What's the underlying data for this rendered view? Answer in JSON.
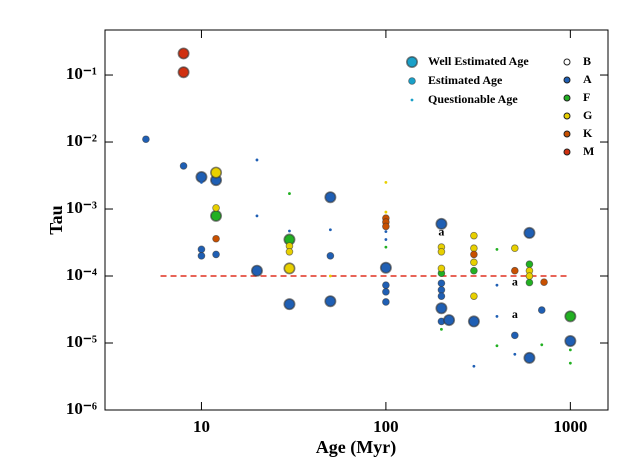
{
  "chart_data": {
    "type": "scatter",
    "xlabel": "Age (Myr)",
    "ylabel": "Tau",
    "log_x": true,
    "log_y": true,
    "xlim": [
      3,
      1600
    ],
    "ylim": [
      1e-06,
      0.47
    ],
    "xticks": [
      10,
      100,
      1000
    ],
    "yticks": [
      {
        "value": 1e-06,
        "label": "10⁻⁶"
      },
      {
        "value": 1e-05,
        "label": "10⁻⁵"
      },
      {
        "value": 0.0001,
        "label": "10⁻⁴"
      },
      {
        "value": 0.001,
        "label": "10⁻³"
      },
      {
        "value": 0.01,
        "label": "10⁻²"
      },
      {
        "value": 0.1,
        "label": "10⁻¹"
      }
    ],
    "size_legend": {
      "color": "#1aa0c8",
      "items": [
        "Well Estimated Age",
        "Estimated Age",
        "Questionable Age"
      ]
    },
    "reference_line": {
      "y": 0.0001,
      "x": [
        6,
        1000
      ],
      "color": "#e03020"
    },
    "annotations": [
      {
        "text": "a",
        "x": 200,
        "y": 0.00044
      },
      {
        "text": "a",
        "x": 500,
        "y": 7.9e-05
      },
      {
        "text": "a",
        "x": 500,
        "y": 2.6e-05
      }
    ],
    "series": [
      {
        "name": "B",
        "color": "#ffffff",
        "x": [
          400
        ],
        "values": [
          0.00011
        ],
        "quality": [
          2
        ]
      },
      {
        "name": "A",
        "color": "#1f5fb4",
        "x": [
          5,
          8,
          10,
          10,
          12,
          10,
          10,
          12,
          20,
          20,
          20,
          30,
          30,
          50,
          50,
          50,
          50,
          100,
          100,
          100,
          100,
          100,
          100,
          200,
          200,
          200,
          200,
          200,
          200,
          220,
          300,
          300,
          400,
          400,
          500,
          500,
          600,
          600,
          700,
          1000
        ],
        "values": [
          0.011,
          0.0044,
          0.003,
          0.0025,
          0.0027,
          0.00025,
          0.0002,
          0.00021,
          0.0054,
          0.00079,
          0.00012,
          0.00047,
          3.8e-05,
          0.0015,
          0.00049,
          0.0002,
          4.2e-05,
          0.00046,
          0.00035,
          0.000133,
          7.3e-05,
          5.8e-05,
          4.1e-05,
          0.0006,
          7.8e-05,
          6.2e-05,
          5e-05,
          3.3e-05,
          2.1e-05,
          2.2e-05,
          2.1e-05,
          4.5e-06,
          7.3e-05,
          2.5e-05,
          1.3e-05,
          6.8e-06,
          0.00044,
          6e-06,
          3.1e-05,
          1.07e-05
        ],
        "quality": [
          1,
          1,
          0,
          2,
          0,
          1,
          1,
          1,
          2,
          2,
          0,
          2,
          0,
          0,
          2,
          1,
          0,
          2,
          2,
          0,
          1,
          1,
          1,
          0,
          1,
          1,
          1,
          0,
          1,
          0,
          0,
          2,
          2,
          2,
          1,
          2,
          0,
          0,
          1,
          0
        ]
      },
      {
        "name": "F",
        "color": "#22b022",
        "x": [
          12,
          30,
          30,
          100,
          200,
          200,
          300,
          400,
          600,
          600,
          1000,
          1000,
          1000,
          400,
          700
        ],
        "values": [
          0.00079,
          0.0017,
          0.00035,
          0.00027,
          0.00011,
          1.6e-05,
          0.00012,
          0.00025,
          0.00015,
          8e-05,
          2.5e-05,
          7.9e-06,
          5e-06,
          9.1e-06,
          9.4e-06
        ],
        "quality": [
          0,
          2,
          0,
          2,
          1,
          2,
          1,
          2,
          1,
          1,
          0,
          2,
          2,
          2,
          2
        ]
      },
      {
        "name": "G",
        "color": "#e8d000",
        "x": [
          12,
          12,
          30,
          30,
          30,
          50,
          100,
          100,
          200,
          200,
          200,
          300,
          300,
          300,
          300,
          500,
          600,
          600
        ],
        "values": [
          0.0035,
          0.00104,
          0.00028,
          0.00023,
          0.00013,
          0.0001,
          0.0025,
          0.0009,
          0.00027,
          0.00023,
          0.00013,
          0.0004,
          0.00026,
          0.00016,
          5e-05,
          0.00026,
          0.00012,
          0.0001
        ],
        "quality": [
          0,
          1,
          1,
          1,
          0,
          2,
          2,
          2,
          1,
          1,
          1,
          1,
          1,
          1,
          1,
          1,
          1,
          1
        ]
      },
      {
        "name": "K",
        "color": "#c85000",
        "x": [
          12,
          100,
          100,
          100,
          300,
          500,
          720
        ],
        "values": [
          0.00036,
          0.00073,
          0.00064,
          0.00055,
          0.00021,
          0.00012,
          8.1e-05
        ],
        "quality": [
          1,
          1,
          1,
          1,
          1,
          1,
          1
        ]
      },
      {
        "name": "M",
        "color": "#d03010",
        "x": [
          8,
          8
        ],
        "values": [
          0.21,
          0.11
        ],
        "quality": [
          0,
          0
        ]
      }
    ]
  }
}
